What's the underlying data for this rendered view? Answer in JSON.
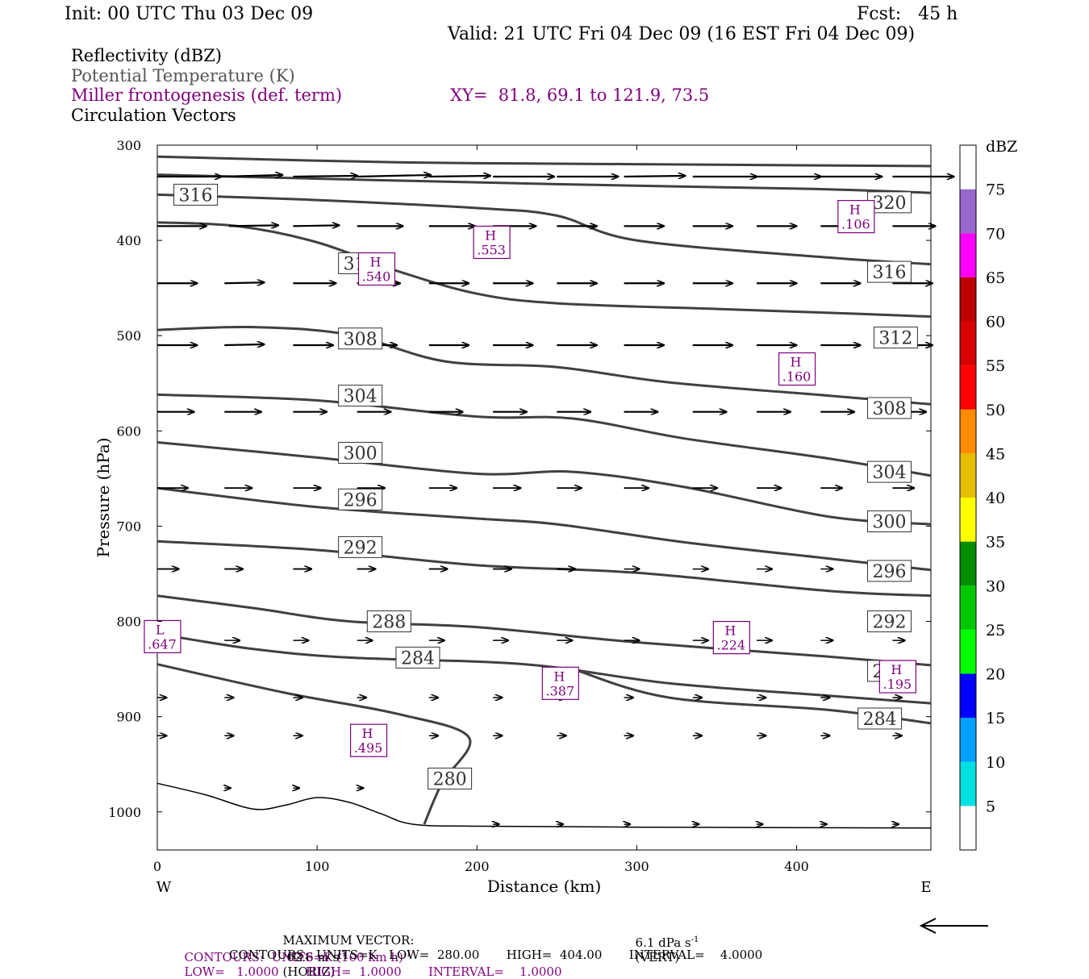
{
  "header": {
    "init": "Init: 00 UTC Thu 03 Dec 09",
    "fcst": "Fcst:   45 h",
    "valid": "Valid: 21 UTC Fri 04 Dec 09 (16 EST Fri 04 Dec 09)"
  },
  "legend": {
    "reflectivity": "Reflectivity (dBZ)",
    "theta": "Potential Temperature (K)",
    "miller": "Miller frontogenesis (def. term)",
    "xy": "XY=  81.8, 69.1 to 121.9, 73.5",
    "circ": "Circulation Vectors"
  },
  "footer": {
    "maxvec_label": "MAXIMUM VECTOR:",
    "maxvec_horiz": "62.6 m s",
    "maxvec_horiz_exp": "-1",
    "maxvec_horiz_tag": "(HORIZ)",
    "maxvec_vert": "6.1 dPa s",
    "maxvec_vert_exp": "-1",
    "maxvec_vert_tag": "(VERT)",
    "contours1_a": "CONTOURS:  UNITS=K (100 km h)",
    "contours1_exp": "-1",
    "contours1_b": "LOW=   1.0000       HIGH=  1.0000       INTERVAL=    1.0000",
    "contours2": "CONTOURS:  UNITS=K   LOW=  280.00       HIGH=  404.00       INTERVAL=    4.0000"
  },
  "colors": {
    "theta": "#404040",
    "miller": "#7f007f",
    "scale": [
      "#ffffff",
      "#00e0e0",
      "#00a0ff",
      "#0000ff",
      "#00ff00",
      "#00c800",
      "#008c00",
      "#ffff00",
      "#e6be00",
      "#ff8c00",
      "#ff0000",
      "#d70000",
      "#be0000",
      "#ff00ff",
      "#9966cc",
      "#ffffff"
    ]
  },
  "chart_data": {
    "type": "line",
    "xlabel": "Distance (km)",
    "ylabel": "Pressure (hPa)",
    "x_ticks": [
      "0",
      "100",
      "200",
      "300",
      "400"
    ],
    "x_tick_values": [
      0,
      100,
      200,
      300,
      400
    ],
    "y_ticks": [
      "300",
      "400",
      "500",
      "600",
      "700",
      "800",
      "900",
      "1000"
    ],
    "y_tick_values": [
      300,
      400,
      500,
      600,
      700,
      800,
      900,
      1000
    ],
    "xlim": [
      0,
      484
    ],
    "ylim": [
      1040,
      300
    ],
    "west_label": "W",
    "east_label": "E",
    "colorbar": {
      "unit": "dBZ",
      "labels": [
        "5",
        "10",
        "15",
        "20",
        "25",
        "30",
        "35",
        "40",
        "45",
        "50",
        "55",
        "60",
        "65",
        "70",
        "75"
      ],
      "values": [
        5,
        10,
        15,
        20,
        25,
        30,
        35,
        40,
        45,
        50,
        55,
        60,
        65,
        70,
        75
      ]
    },
    "theta_contours": [
      {
        "label": "320",
        "points": [
          [
            0,
            312
          ],
          [
            150,
            318
          ],
          [
            300,
            320
          ],
          [
            484,
            322
          ]
        ]
      },
      {
        "label": "320",
        "label_at": [
          458,
          360
        ],
        "points": [
          [
            0,
            331
          ],
          [
            120,
            336
          ],
          [
            250,
            341
          ],
          [
            410,
            346
          ],
          [
            484,
            350
          ]
        ]
      },
      {
        "label": "316",
        "label_at": [
          24,
          352
        ],
        "points": [
          [
            0,
            352
          ],
          [
            90,
            357
          ],
          [
            200,
            366
          ],
          [
            250,
            374
          ],
          [
            300,
            400
          ],
          [
            420,
            418
          ],
          [
            484,
            425
          ]
        ]
      },
      {
        "label": "316",
        "label_at": [
          458,
          433
        ],
        "points": [
          [
            0,
            381
          ],
          [
            50,
            385
          ],
          [
            100,
            402
          ],
          [
            150,
            432
          ],
          [
            200,
            456
          ],
          [
            250,
            466
          ],
          [
            350,
            472
          ],
          [
            420,
            476
          ],
          [
            484,
            480
          ]
        ]
      },
      {
        "label": "312",
        "label_at": [
          127,
          424
        ],
        "points": [
          [
            0,
            494
          ],
          [
            60,
            491
          ],
          [
            120,
            499
          ],
          [
            180,
            527
          ],
          [
            250,
            533
          ],
          [
            320,
            549
          ],
          [
            420,
            563
          ],
          [
            484,
            572
          ]
        ]
      },
      {
        "label": "312",
        "label_at": [
          462,
          502
        ]
      },
      {
        "label": "308",
        "label_at": [
          127,
          503
        ],
        "points": [
          [
            0,
            562
          ],
          [
            100,
            568
          ],
          [
            200,
            585
          ],
          [
            260,
            587
          ],
          [
            330,
            608
          ],
          [
            420,
            629
          ],
          [
            484,
            647
          ]
        ]
      },
      {
        "label": "308",
        "label_at": [
          458,
          576
        ]
      },
      {
        "label": "304",
        "label_at": [
          127,
          563
        ],
        "points": [
          [
            0,
            612
          ],
          [
            100,
            628
          ],
          [
            200,
            645
          ],
          [
            260,
            643
          ],
          [
            330,
            659
          ],
          [
            420,
            690
          ],
          [
            484,
            698
          ]
        ]
      },
      {
        "label": "304",
        "label_at": [
          458,
          643
        ]
      },
      {
        "label": "300",
        "label_at": [
          127,
          623
        ],
        "points": [
          [
            0,
            660
          ],
          [
            100,
            680
          ],
          [
            200,
            692
          ],
          [
            250,
            698
          ],
          [
            330,
            717
          ],
          [
            420,
            734
          ],
          [
            484,
            746
          ]
        ]
      },
      {
        "label": "300",
        "label_at": [
          458,
          695
        ]
      },
      {
        "label": "296",
        "label_at": [
          127,
          672
        ],
        "points": [
          [
            0,
            716
          ],
          [
            100,
            725
          ],
          [
            200,
            741
          ],
          [
            300,
            749
          ],
          [
            420,
            768
          ],
          [
            484,
            773
          ]
        ]
      },
      {
        "label": "296",
        "label_at": [
          458,
          747
        ]
      },
      {
        "label": "292",
        "label_at": [
          127,
          722
        ],
        "points": [
          [
            0,
            773
          ],
          [
            60,
            786
          ],
          [
            120,
            800
          ],
          [
            200,
            806
          ],
          [
            300,
            822
          ],
          [
            420,
            837
          ],
          [
            484,
            846
          ]
        ]
      },
      {
        "label": "292",
        "label_at": [
          458,
          800
        ]
      },
      {
        "label": "288",
        "label_at": [
          145,
          800
        ],
        "points": [
          [
            0,
            813
          ],
          [
            60,
            829
          ],
          [
            120,
            838
          ],
          [
            230,
            845
          ],
          [
            320,
            865
          ],
          [
            420,
            878
          ],
          [
            484,
            886
          ]
        ]
      },
      {
        "label": "288",
        "label_at": [
          458,
          852
        ]
      },
      {
        "label": "284",
        "label_at": [
          163,
          838
        ],
        "points": [
          [
            0,
            845
          ],
          [
            80,
            875
          ],
          [
            150,
            897
          ],
          [
            195,
            922
          ],
          [
            178,
            970
          ],
          [
            167,
            1013
          ]
        ]
      },
      {
        "label": "284",
        "label_at": [
          452,
          902
        ],
        "points": [
          [
            260,
            850
          ],
          [
            320,
            880
          ],
          [
            420,
            893
          ],
          [
            484,
            907
          ]
        ]
      },
      {
        "label": "280",
        "label_at": [
          183,
          965
        ]
      }
    ],
    "surface": [
      [
        0,
        970
      ],
      [
        30,
        982
      ],
      [
        60,
        997
      ],
      [
        80,
        993
      ],
      [
        100,
        985
      ],
      [
        120,
        990
      ],
      [
        140,
        1002
      ],
      [
        160,
        1013
      ],
      [
        200,
        1015
      ],
      [
        300,
        1016
      ],
      [
        484,
        1017
      ]
    ],
    "miller_maxima": [
      {
        "label": "H",
        "value": ".553",
        "at": [
          209,
          402
        ]
      },
      {
        "label": "H",
        "value": ".540",
        "at": [
          137,
          430
        ]
      },
      {
        "label": "H",
        "value": ".106",
        "at": [
          437,
          375
        ]
      },
      {
        "label": "H",
        "value": ".160",
        "at": [
          400,
          535
        ]
      },
      {
        "label": "H",
        "value": ".224",
        "at": [
          359,
          817
        ]
      },
      {
        "label": "H",
        "value": ".387",
        "at": [
          252,
          865
        ]
      },
      {
        "label": "H",
        "value": ".195",
        "at": [
          463,
          858
        ]
      },
      {
        "label": "H",
        "value": ".495",
        "at": [
          132,
          925
        ]
      },
      {
        "label": "L",
        "value": ".647",
        "at": [
          3,
          816
        ]
      }
    ],
    "vectors": [
      {
        "p": 333,
        "x": [
          0,
          40,
          85,
          125,
          170,
          210,
          250,
          292,
          335,
          375,
          415,
          460
        ],
        "u": [
          42,
          40,
          42,
          48,
          40,
          40,
          40,
          40,
          42,
          42,
          40,
          40
        ],
        "w": [
          0,
          -2,
          -1,
          -2,
          -1,
          0,
          0,
          -1,
          0,
          0,
          0,
          0
        ]
      },
      {
        "p": 385,
        "x": [
          0,
          45,
          85,
          125,
          170,
          210,
          250,
          292,
          335,
          375,
          415,
          460,
          482
        ],
        "u": [
          32,
          32,
          30,
          30,
          30,
          28,
          26,
          26,
          26,
          26,
          26,
          28,
          0
        ],
        "w": [
          0,
          -1,
          -1,
          0,
          0,
          0,
          0,
          0,
          0,
          0,
          0,
          0,
          0
        ]
      },
      {
        "p": 445,
        "x": [
          0,
          42,
          85,
          125,
          170,
          210,
          250,
          292,
          335,
          375,
          415,
          460
        ],
        "u": [
          26,
          26,
          28,
          28,
          26,
          26,
          26,
          26,
          26,
          26,
          26,
          26
        ],
        "w": [
          0,
          -1,
          0,
          0,
          0,
          0,
          0,
          0,
          0,
          0,
          0,
          0
        ]
      },
      {
        "p": 510,
        "x": [
          0,
          42,
          85,
          125,
          170,
          210,
          250,
          292,
          335,
          375,
          415,
          460
        ],
        "u": [
          26,
          26,
          26,
          26,
          26,
          26,
          26,
          26,
          26,
          26,
          26,
          26
        ],
        "w": [
          0,
          -1,
          0,
          0,
          0,
          0,
          0,
          0,
          0,
          0,
          0,
          0
        ]
      },
      {
        "p": 580,
        "x": [
          0,
          42,
          85,
          125,
          170,
          210,
          250,
          292,
          335,
          375,
          415,
          460,
          482
        ],
        "u": [
          24,
          24,
          22,
          22,
          22,
          22,
          22,
          22,
          22,
          22,
          22,
          22,
          0
        ],
        "w": [
          0,
          0,
          0,
          0,
          0,
          0,
          0,
          0,
          0,
          0,
          0,
          0,
          0
        ]
      },
      {
        "p": 660,
        "x": [
          0,
          42,
          85,
          125,
          170,
          210,
          250,
          292,
          335,
          375,
          415,
          460
        ],
        "u": [
          20,
          18,
          18,
          18,
          18,
          18,
          16,
          16,
          16,
          16,
          14,
          14
        ],
        "w": [
          0,
          0,
          0,
          0,
          0,
          0,
          0,
          0,
          0,
          0,
          0,
          0
        ]
      },
      {
        "p": 745,
        "x": [
          0,
          42,
          85,
          125,
          170,
          210,
          250,
          292,
          335,
          375,
          415,
          460
        ],
        "u": [
          14,
          12,
          12,
          12,
          12,
          12,
          12,
          10,
          10,
          10,
          8,
          8
        ],
        "w": [
          0,
          0,
          0,
          0,
          0,
          0,
          0,
          0,
          0,
          0,
          0,
          0
        ]
      },
      {
        "p": 820,
        "x": [
          0,
          42,
          85,
          125,
          170,
          210,
          250,
          292,
          335,
          375,
          415,
          460
        ],
        "u": [
          10,
          10,
          10,
          10,
          10,
          10,
          10,
          10,
          10,
          10,
          8,
          8
        ],
        "w": [
          0,
          0,
          0,
          0,
          0,
          0,
          0,
          0,
          0,
          0,
          0,
          0
        ]
      },
      {
        "p": 880,
        "x": [
          0,
          42,
          85,
          125,
          170,
          210,
          250,
          292,
          335,
          375,
          415,
          460
        ],
        "u": [
          6,
          6,
          6,
          6,
          6,
          6,
          6,
          6,
          6,
          6,
          6,
          6
        ],
        "w": [
          0,
          0,
          0,
          0,
          0,
          0,
          0,
          0,
          0,
          0,
          0,
          0
        ]
      },
      {
        "p": 920,
        "x": [
          0,
          42,
          85,
          125,
          170,
          210,
          250,
          292,
          335,
          375,
          415,
          460
        ],
        "u": [
          6,
          6,
          6,
          6,
          6,
          6,
          6,
          6,
          6,
          6,
          6,
          6
        ],
        "w": [
          0,
          0,
          0,
          0,
          0,
          0,
          0,
          0,
          0,
          0,
          0,
          0
        ]
      },
      {
        "p": 975,
        "x": [
          42,
          85,
          125
        ],
        "u": [
          4,
          4,
          4
        ],
        "w": [
          0,
          0,
          0
        ]
      },
      {
        "p": 1013,
        "x": [
          210,
          250,
          292,
          335,
          375,
          415,
          460
        ],
        "u": [
          4,
          4,
          4,
          4,
          4,
          4,
          4
        ],
        "w": [
          0,
          0,
          0,
          0,
          0,
          0,
          0
        ]
      }
    ]
  }
}
